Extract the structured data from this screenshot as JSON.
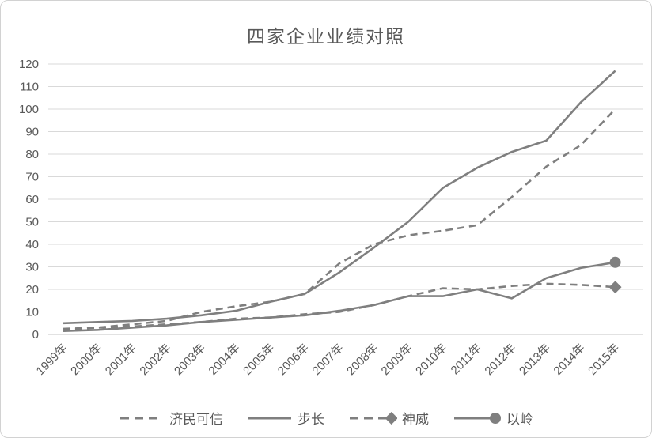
{
  "chart_data": {
    "type": "line",
    "title": "四家企业业绩对照",
    "categories": [
      "1999年",
      "2000年",
      "2001年",
      "2002年",
      "2003年",
      "2004年",
      "2005年",
      "2006年",
      "2007年",
      "2008年",
      "2009年",
      "2010年",
      "2011年",
      "2012年",
      "2013年",
      "2014年",
      "2015年"
    ],
    "series": [
      {
        "name": "济民可信",
        "style": "dashed",
        "marker": "none",
        "values": [
          2,
          3,
          4.5,
          6,
          10,
          12.5,
          14.5,
          18,
          31.5,
          40,
          44,
          46,
          48.5,
          61,
          74.5,
          84,
          100
        ]
      },
      {
        "name": "步长",
        "style": "solid",
        "marker": "none",
        "values": [
          5,
          5.5,
          6,
          7,
          8.5,
          10.5,
          14.5,
          18,
          27.5,
          38.5,
          50,
          65,
          74,
          81,
          86,
          103,
          117
        ]
      },
      {
        "name": "神威",
        "style": "dashed",
        "marker": "diamond-last",
        "values": [
          2.5,
          3,
          3.5,
          4.5,
          5.5,
          7,
          7.5,
          9,
          10,
          13,
          17,
          20.5,
          20,
          21.5,
          22.5,
          22,
          21
        ]
      },
      {
        "name": "以岭",
        "style": "solid",
        "marker": "circle-last",
        "values": [
          1.5,
          2,
          3,
          4,
          5.5,
          6.5,
          7.5,
          8.5,
          10.5,
          13,
          17,
          17,
          20,
          16,
          25,
          29.5,
          32
        ]
      }
    ],
    "ylim": [
      0,
      120
    ],
    "ytick_step": 10,
    "yticks": [
      "0",
      "10",
      "20",
      "30",
      "40",
      "50",
      "60",
      "70",
      "80",
      "90",
      "100",
      "110",
      "120"
    ],
    "grid": "horizontal",
    "legend_position": "bottom",
    "line_color": "#7f7f7f",
    "text_color": "#595959",
    "grid_color": "#d9d9d9"
  }
}
